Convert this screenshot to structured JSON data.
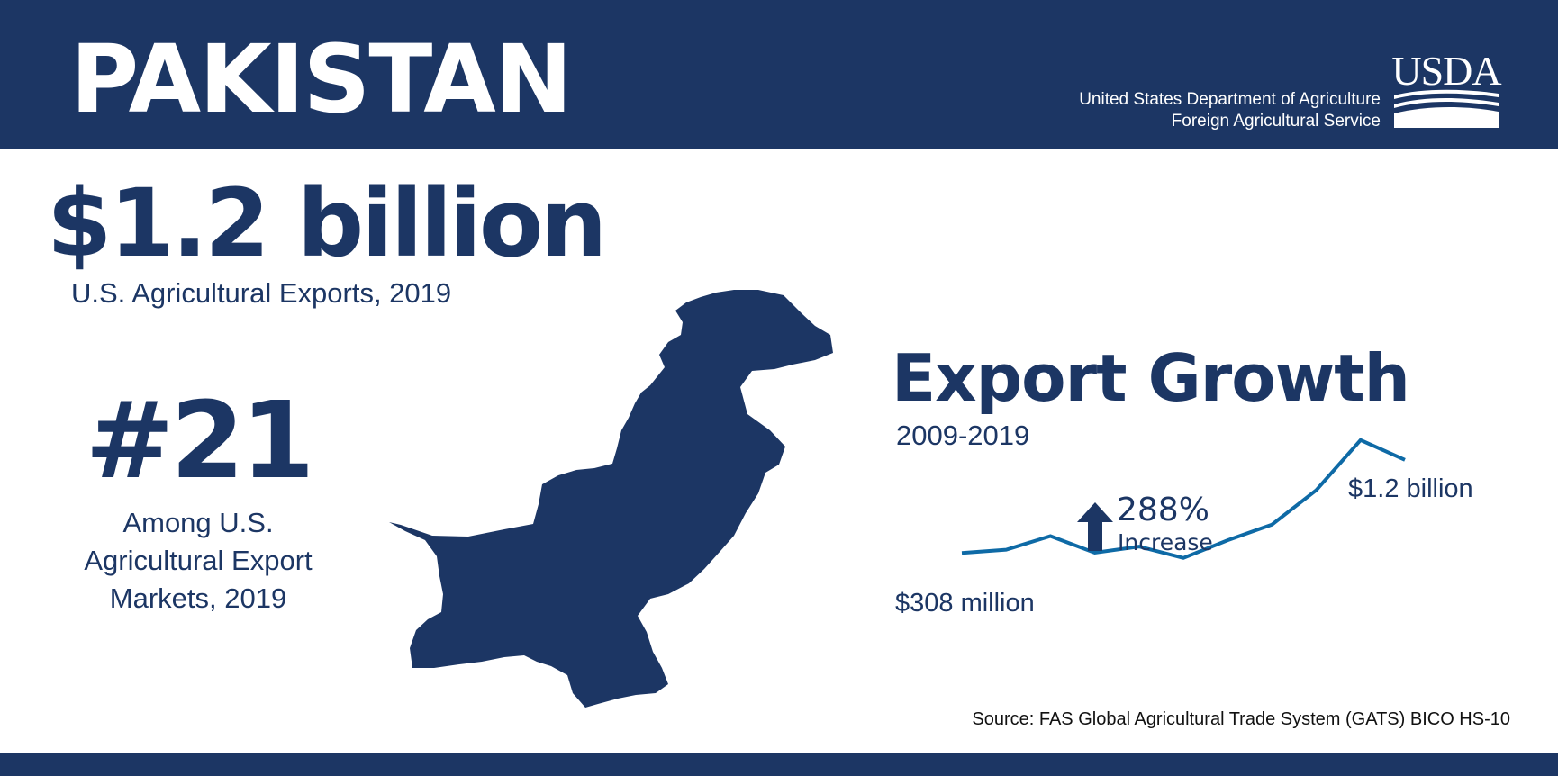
{
  "header": {
    "country": "PAKISTAN",
    "org_line1": "United States Department of Agriculture",
    "org_line2": "Foreign Agricultural Service",
    "logo_text": "USDA"
  },
  "exports": {
    "value": "$1.2 billion",
    "label": "U.S. Agricultural Exports, 2019"
  },
  "rank": {
    "value": "#21",
    "label_line1": "Among U.S.",
    "label_line2": "Agricultural Export",
    "label_line3": "Markets, 2019"
  },
  "growth": {
    "title": "Export Growth",
    "period": "2009-2019",
    "start_label": "$308 million",
    "end_label": "$1.2 billion",
    "increase_pct": "288%",
    "increase_label": "Increase"
  },
  "chart_data": {
    "type": "line",
    "x": [
      2009,
      2010,
      2011,
      2012,
      2013,
      2014,
      2015,
      2016,
      2017,
      2018,
      2019
    ],
    "values": [
      0.308,
      0.34,
      0.47,
      0.31,
      0.37,
      0.26,
      0.43,
      0.58,
      0.91,
      1.39,
      1.2
    ],
    "ylim": [
      0,
      1.5
    ],
    "grid": false,
    "line_color": "#0e6aa6"
  },
  "source": "Source: FAS Global Agricultural Trade System (GATS) BICO HS-10",
  "colors": {
    "navy": "#1c3664",
    "line_blue": "#0e6aa6",
    "white": "#ffffff"
  }
}
